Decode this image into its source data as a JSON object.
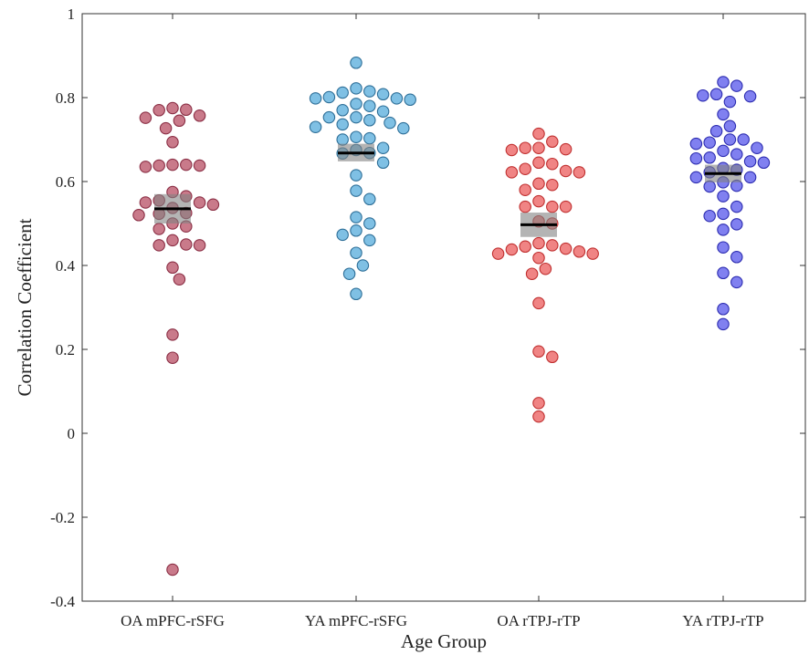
{
  "chart_data": {
    "type": "scatter",
    "xlabel": "Age Group",
    "ylabel": "Correlation Coefficient",
    "ylim": [
      -0.4,
      1
    ],
    "yticks": [
      -0.4,
      -0.2,
      0,
      0.2,
      0.4,
      0.6,
      0.8,
      1
    ],
    "ytick_labels": [
      "-0.4",
      "-0.2",
      "0",
      "0.2",
      "0.4",
      "0.6",
      "0.8",
      "1"
    ],
    "grid": false,
    "categories": [
      "OA mPFC-rSFG",
      "YA mPFC-rSFG",
      "OA rTPJ-rTP",
      "YA rTPJ-rTP"
    ],
    "series": [
      {
        "category": "OA mPFC-rSFG",
        "color": "#c97a8a",
        "edge_color": "#8b2f45",
        "mean": 0.535,
        "sem_range": [
          0.5,
          0.57
        ],
        "values": [
          0.745,
          0.757,
          0.771,
          0.775,
          0.77,
          0.752,
          0.694,
          0.727,
          0.638,
          0.64,
          0.64,
          0.638,
          0.635,
          0.575,
          0.525,
          0.537,
          0.55,
          0.555,
          0.565,
          0.55,
          0.545,
          0.523,
          0.52,
          0.5,
          0.487,
          0.493,
          0.448,
          0.45,
          0.46,
          0.448,
          0.367,
          0.395,
          0.235,
          0.18,
          -0.325
        ]
      },
      {
        "category": "YA mPFC-rSFG",
        "color": "#7fc0e4",
        "edge_color": "#2e6f98",
        "mean": 0.668,
        "sem_range": [
          0.648,
          0.69
        ],
        "values": [
          0.883,
          0.798,
          0.808,
          0.815,
          0.822,
          0.812,
          0.801,
          0.753,
          0.767,
          0.78,
          0.795,
          0.798,
          0.785,
          0.77,
          0.753,
          0.7,
          0.706,
          0.727,
          0.736,
          0.746,
          0.74,
          0.73,
          0.703,
          0.645,
          0.667,
          0.68,
          0.675,
          0.668,
          0.615,
          0.558,
          0.578,
          0.5,
          0.515,
          0.483,
          0.473,
          0.46,
          0.43,
          0.4,
          0.38,
          0.332
        ]
      },
      {
        "category": "OA rTPJ-rTP",
        "color": "#f08484",
        "edge_color": "#c03030",
        "mean": 0.497,
        "sem_range": [
          0.468,
          0.526
        ],
        "values": [
          0.714,
          0.675,
          0.68,
          0.695,
          0.68,
          0.677,
          0.595,
          0.622,
          0.63,
          0.645,
          0.642,
          0.625,
          0.622,
          0.54,
          0.54,
          0.58,
          0.592,
          0.553,
          0.54,
          0.505,
          0.5,
          0.418,
          0.428,
          0.438,
          0.445,
          0.453,
          0.448,
          0.44,
          0.433,
          0.428,
          0.38,
          0.392,
          0.31,
          0.182,
          0.195,
          0.072,
          0.04
        ]
      },
      {
        "category": "YA rTPJ-rTP",
        "color": "#8080f0",
        "edge_color": "#2c2cb0",
        "mean": 0.619,
        "sem_range": [
          0.598,
          0.64
        ],
        "values": [
          0.837,
          0.803,
          0.808,
          0.828,
          0.805,
          0.76,
          0.79,
          0.72,
          0.732,
          0.7,
          0.7,
          0.693,
          0.69,
          0.68,
          0.673,
          0.665,
          0.657,
          0.648,
          0.645,
          0.655,
          0.61,
          0.622,
          0.632,
          0.628,
          0.598,
          0.59,
          0.588,
          0.61,
          0.565,
          0.523,
          0.54,
          0.498,
          0.518,
          0.485,
          0.443,
          0.42,
          0.382,
          0.36,
          0.296,
          0.26
        ]
      }
    ]
  }
}
